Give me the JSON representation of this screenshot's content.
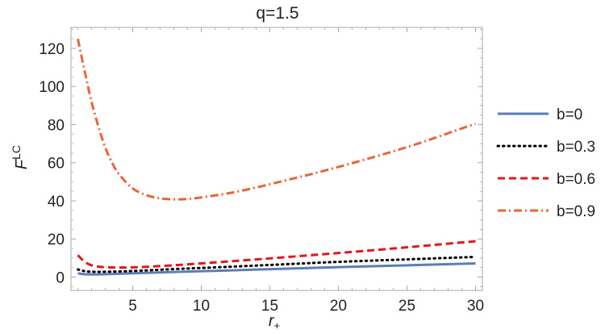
{
  "chart_data": {
    "type": "line",
    "title": "q=1.5",
    "xlabel": "r",
    "xlabel_sub": "+",
    "ylabel": "F",
    "ylabel_sup": "LC",
    "xlim": [
      0.5,
      30.5
    ],
    "ylim": [
      -7,
      131
    ],
    "x_ticks": [
      5,
      10,
      15,
      20,
      25,
      30
    ],
    "y_ticks": [
      0,
      20,
      40,
      60,
      80,
      100,
      120
    ],
    "grid": false,
    "legend_position": "right",
    "series": [
      {
        "name": "b=0",
        "color": "#5b7fb5",
        "dash": "solid",
        "x": [
          1,
          1.5,
          2,
          3,
          5,
          8,
          12,
          16,
          20,
          25,
          30
        ],
        "y": [
          2.0,
          1.5,
          1.4,
          1.5,
          2.0,
          2.7,
          3.5,
          4.4,
          5.2,
          6.2,
          7.2
        ]
      },
      {
        "name": "b=0.3",
        "color": "#000000",
        "dash": "dotted",
        "x": [
          1,
          1.5,
          2,
          3,
          5,
          8,
          12,
          16,
          20,
          25,
          30
        ],
        "y": [
          4.0,
          3.1,
          2.8,
          2.8,
          3.2,
          4.2,
          5.4,
          6.7,
          8.0,
          9.3,
          10.6
        ]
      },
      {
        "name": "b=0.6",
        "color": "#e3161b",
        "dash": "dashed",
        "x": [
          1,
          1.5,
          2,
          2.5,
          3,
          4,
          5,
          6,
          8,
          10,
          12,
          15,
          18,
          21,
          24,
          27,
          30
        ],
        "y": [
          11.5,
          8.0,
          6.2,
          5.5,
          5.2,
          5.0,
          5.1,
          5.4,
          6.2,
          7.2,
          8.2,
          9.8,
          11.5,
          13.2,
          15.0,
          16.9,
          18.8
        ]
      },
      {
        "name": "b=0.9",
        "color": "#e8643a",
        "dash": "dashdot",
        "x": [
          1,
          1.5,
          2,
          2.5,
          3,
          3.5,
          4,
          5,
          6,
          7,
          8,
          9,
          10,
          12,
          14,
          16,
          18,
          20,
          22,
          24,
          26,
          28,
          30
        ],
        "y": [
          125,
          108,
          92,
          79,
          68,
          60,
          54,
          46.5,
          43,
          41.3,
          40.8,
          41.0,
          41.8,
          44.0,
          47.0,
          50.5,
          54.0,
          57.8,
          61.8,
          66.0,
          70.5,
          75.5,
          80.5
        ]
      }
    ]
  }
}
